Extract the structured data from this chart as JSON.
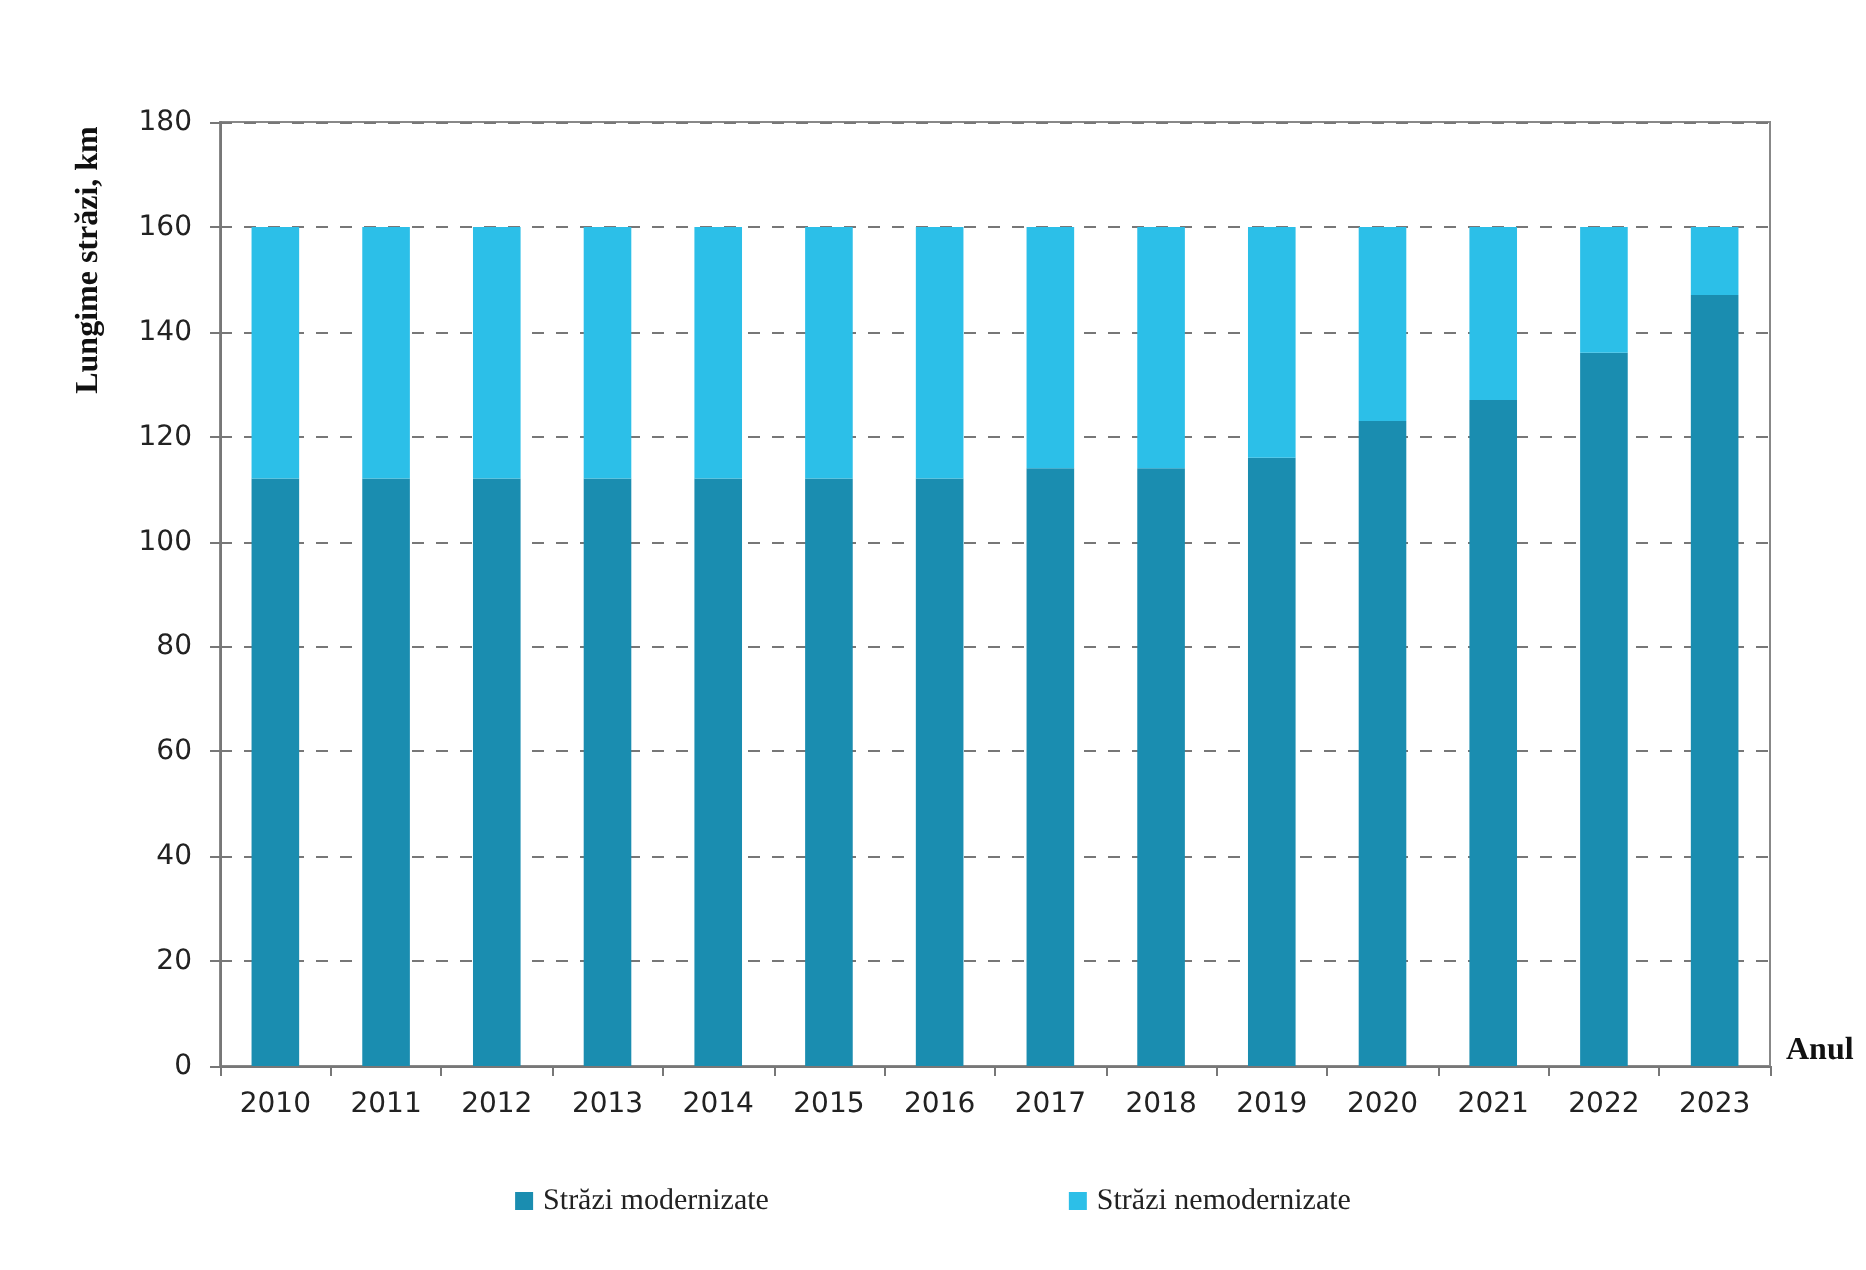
{
  "chart_data": {
    "type": "bar",
    "xlabel": "Anul",
    "ylabel": "Lungime străzi, km",
    "categories": [
      "2010",
      "2011",
      "2012",
      "2013",
      "2014",
      "2015",
      "2016",
      "2017",
      "2018",
      "2019",
      "2020",
      "2021",
      "2022",
      "2023"
    ],
    "series": [
      {
        "name": "Străzi modernizate",
        "color": "#1a8db0",
        "values": [
          112,
          112,
          112,
          112,
          112,
          112,
          112,
          114,
          114,
          116,
          123,
          127,
          136,
          147
        ]
      },
      {
        "name": "Străzi nemodernizate",
        "color": "#2cbfe8",
        "values": [
          48,
          48,
          48,
          48,
          48,
          48,
          48,
          46,
          46,
          44,
          37,
          33,
          24,
          13
        ]
      }
    ],
    "stacked": true,
    "ylim": [
      0,
      180
    ],
    "yticks": [
      0,
      20,
      40,
      60,
      80,
      100,
      120,
      140,
      160,
      180
    ],
    "grid": "y",
    "legend": "bottom"
  }
}
